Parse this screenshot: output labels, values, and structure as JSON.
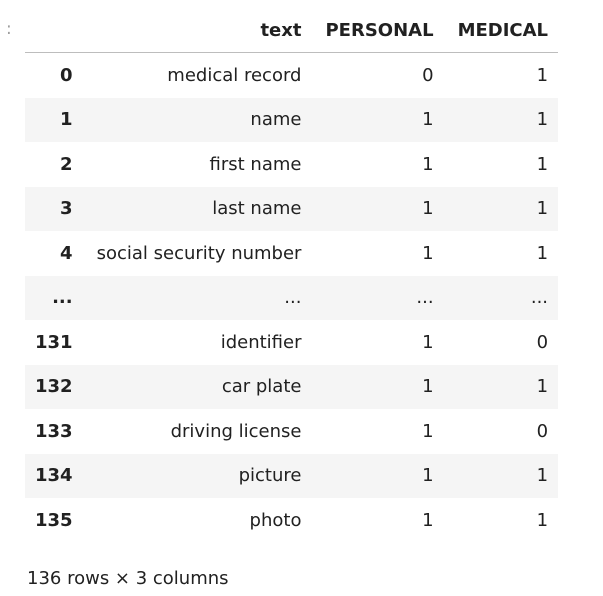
{
  "prompt_marker": ":",
  "table": {
    "columns": [
      "text",
      "PERSONAL",
      "MEDICAL"
    ],
    "rows": [
      {
        "index": "0",
        "text": "medical record",
        "personal": "0",
        "medical": "1"
      },
      {
        "index": "1",
        "text": "name",
        "personal": "1",
        "medical": "1"
      },
      {
        "index": "2",
        "text": "first name",
        "personal": "1",
        "medical": "1"
      },
      {
        "index": "3",
        "text": "last name",
        "personal": "1",
        "medical": "1"
      },
      {
        "index": "4",
        "text": "social security number",
        "personal": "1",
        "medical": "1"
      },
      {
        "index": "...",
        "text": "...",
        "personal": "...",
        "medical": "..."
      },
      {
        "index": "131",
        "text": "identifier",
        "personal": "1",
        "medical": "0"
      },
      {
        "index": "132",
        "text": "car plate",
        "personal": "1",
        "medical": "1"
      },
      {
        "index": "133",
        "text": "driving license",
        "personal": "1",
        "medical": "0"
      },
      {
        "index": "134",
        "text": "picture",
        "personal": "1",
        "medical": "1"
      },
      {
        "index": "135",
        "text": "photo",
        "personal": "1",
        "medical": "1"
      }
    ]
  },
  "shape_info": "136 rows × 3 columns"
}
